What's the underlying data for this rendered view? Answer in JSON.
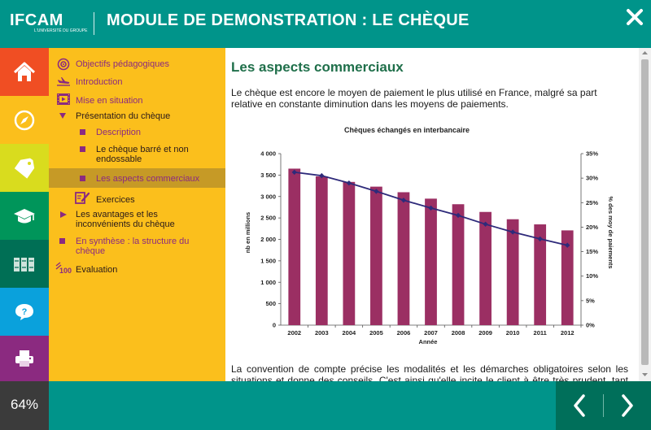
{
  "header": {
    "logo_text": "IFCAM",
    "logo_tagline": "L'UNIVERSITÉ DU GROUPE",
    "title": "MODULE DE DEMONSTRATION : LE CHÈQUE",
    "close_icon": "close-icon"
  },
  "sidebar": {
    "buttons": [
      {
        "name": "home",
        "icon": "home-icon",
        "color": "#f04e23"
      },
      {
        "name": "compass",
        "icon": "compass-icon",
        "color": "#fbbf1c"
      },
      {
        "name": "tag",
        "icon": "tag-icon",
        "color": "#d9dc1e"
      },
      {
        "name": "graduation",
        "icon": "graduation-cap-icon",
        "color": "#00955a"
      },
      {
        "name": "library",
        "icon": "books-icon",
        "color": "#006f55"
      },
      {
        "name": "help",
        "icon": "help-bubble-icon",
        "color": "#0aa1dc"
      },
      {
        "name": "print",
        "icon": "printer-icon",
        "color": "#8b2a80"
      }
    ]
  },
  "menu": {
    "items": [
      {
        "label": "Objectifs pédagogiques",
        "icon": "target-icon"
      },
      {
        "label": "Introduction",
        "icon": "airplane-icon"
      },
      {
        "label": "Mise en situation",
        "icon": "video-icon"
      },
      {
        "label": "Présentation du chèque",
        "icon": "triangle-down-icon"
      },
      {
        "label": "Description",
        "icon": "square-bullet-icon"
      },
      {
        "label": "Le chèque barré et non endossable",
        "icon": "square-bullet-icon"
      },
      {
        "label": "Les aspects commerciaux",
        "icon": "square-bullet-icon"
      },
      {
        "label": "Exercices",
        "icon": "exercise-icon"
      },
      {
        "label": "Les avantages et les inconvénients du chèque",
        "icon": "triangle-right-icon"
      },
      {
        "label": "En synthèse : la structure du chèque",
        "icon": "square-bullet-icon"
      },
      {
        "label": "Evaluation",
        "icon": "score-100-icon"
      }
    ]
  },
  "content": {
    "title": "Les aspects commerciaux",
    "paragraph1": "Le chèque est encore le moyen de paiement le plus utilisé en France, malgré sa part relative en constante diminution dans les moyens de paiements.",
    "paragraph2": "La convention de compte précise les modalités et les démarches obligatoires selon les situations et donne des conseils. C'est ainsi qu'elle incite le client à être très prudent, tant en"
  },
  "chart_data": {
    "type": "bar",
    "title": "Chèques échangés en interbancaire",
    "xlabel": "Année",
    "ylabel": "nb en millions",
    "y2label": "% des moy de paiements",
    "categories": [
      "2002",
      "2003",
      "2004",
      "2005",
      "2006",
      "2007",
      "2008",
      "2009",
      "2010",
      "2011",
      "2012"
    ],
    "ylim": [
      0,
      4000
    ],
    "yticks": [
      "0",
      "500",
      "1 000",
      "1 500",
      "2 000",
      "2 500",
      "3 000",
      "3 500",
      "4 000"
    ],
    "y2lim": [
      0,
      35
    ],
    "y2ticks": [
      "0%",
      "5%",
      "10%",
      "15%",
      "20%",
      "25%",
      "30%",
      "35%"
    ],
    "series": [
      {
        "type": "bar",
        "color": "#9b2f63",
        "values": [
          3650,
          3470,
          3340,
          3230,
          3100,
          2950,
          2820,
          2640,
          2470,
          2350,
          2210
        ]
      },
      {
        "type": "line",
        "axis": "secondary",
        "color": "#2e2a7a",
        "values": [
          31.2,
          30.5,
          29.0,
          27.3,
          25.5,
          23.9,
          22.4,
          20.6,
          19.0,
          17.6,
          16.3
        ]
      }
    ],
    "grid": false,
    "legend": "none"
  },
  "footer": {
    "progress": "64%",
    "prev_icon": "chevron-left-icon",
    "next_icon": "chevron-right-icon"
  }
}
